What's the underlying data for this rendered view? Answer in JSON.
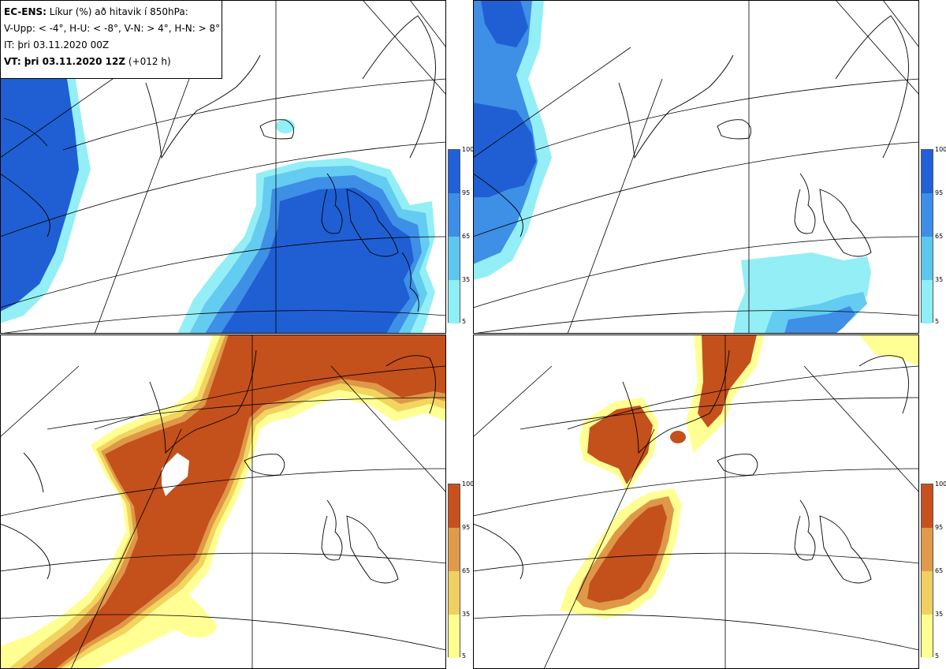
{
  "header": {
    "title_bold": "EC-ENS:",
    "title_rest": " Líkur (%) að hitavik í 850hPa:",
    "thresholds": "V-Upp: < -4°, H-U: < -8°, V-N: > 4°, H-N: > 8°",
    "initial_time": "IT: þri 03.11.2020 00Z",
    "valid_bold": "VT: þri 03.11.2020 12Z",
    "valid_rest": " (+012 h)"
  },
  "panels": [
    {
      "id": "panel-top-left",
      "meaning": "V-Upp"
    },
    {
      "id": "panel-top-right",
      "meaning": "H-U"
    },
    {
      "id": "panel-bottom-left",
      "meaning": "V-N"
    },
    {
      "id": "panel-bottom-right",
      "meaning": "H-N"
    }
  ],
  "legend": {
    "ticks": [
      "100",
      "95",
      "65",
      "35",
      "5"
    ],
    "cold_colors": [
      "#2060d8",
      "#3c8ee8",
      "#5cc8f0",
      "#8ef0f6"
    ],
    "warm_colors": [
      "#c8501e",
      "#e09a4a",
      "#f0d060",
      "#ffff90"
    ]
  },
  "colors": {
    "cold_strong": "#1f5fd3",
    "cold_mid": "#3e8fe6",
    "cold_light": "#64ccf0",
    "cold_faint": "#94eef6",
    "warm_strong": "#c4501c",
    "warm_mid": "#de9848",
    "warm_light": "#f2d45e",
    "warm_faint": "#ffff94"
  }
}
